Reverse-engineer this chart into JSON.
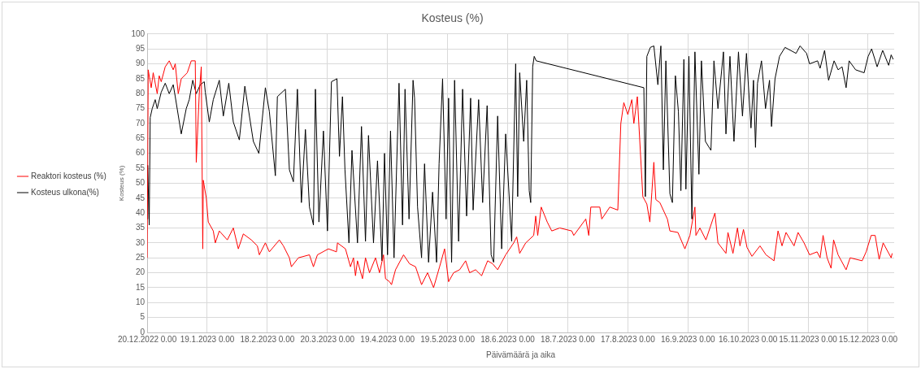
{
  "chart_data": {
    "type": "line",
    "title": "Kosteus (%)",
    "xlabel": "Päivämäärä ja aika",
    "ylabel": "Kosteus (%)",
    "xlim": [
      "2022-12-20",
      "2023-12-28"
    ],
    "xticks": [
      {
        "value": "2022-12-20",
        "label": "20.12.2022 0.00"
      },
      {
        "value": "2023-01-19",
        "label": "19.1.2023 0.00"
      },
      {
        "value": "2023-02-18",
        "label": "18.2.2023 0.00"
      },
      {
        "value": "2023-03-20",
        "label": "20.3.2023 0.00"
      },
      {
        "value": "2023-04-19",
        "label": "19.4.2023 0.00"
      },
      {
        "value": "2023-05-19",
        "label": "19.5.2023 0.00"
      },
      {
        "value": "2023-06-18",
        "label": "18.6.2023 0.00"
      },
      {
        "value": "2023-07-18",
        "label": "18.7.2023 0.00"
      },
      {
        "value": "2023-08-17",
        "label": "17.8.2023 0.00"
      },
      {
        "value": "2023-09-16",
        "label": "16.9.2023 0.00"
      },
      {
        "value": "2023-10-16",
        "label": "16.10.2023 0.00"
      },
      {
        "value": "2023-11-15",
        "label": "15.11.2023 0.00"
      },
      {
        "value": "2023-12-15",
        "label": "15.12.2023 0.00"
      }
    ],
    "ylim": [
      0,
      100
    ],
    "yticks": [
      0,
      5,
      10,
      15,
      20,
      25,
      30,
      35,
      40,
      45,
      50,
      55,
      60,
      65,
      70,
      75,
      80,
      85,
      90,
      95,
      100
    ],
    "grid": true,
    "legend": "left",
    "line_style": "solid",
    "series": [
      {
        "name": "Reaktori kosteus (%)",
        "color": "#ff0000",
        "x": [
          "2022-12-20",
          "2022-12-20T12:00",
          "2022-12-22",
          "2022-12-23",
          "2022-12-25",
          "2022-12-26",
          "2022-12-27",
          "2022-12-29",
          "2022-12-31",
          "2023-01-02",
          "2023-01-03",
          "2023-01-04T12:00",
          "2023-01-06",
          "2023-01-09",
          "2023-01-11",
          "2023-01-13",
          "2023-01-13T12:00",
          "2023-01-15",
          "2023-01-16",
          "2023-01-16T18:00",
          "2023-01-17",
          "2023-01-18T12:00",
          "2023-01-19T12:00",
          "2023-01-22",
          "2023-01-23",
          "2023-01-25",
          "2023-01-29",
          "2023-02-01",
          "2023-02-03T12:00",
          "2023-02-06",
          "2023-02-10",
          "2023-02-13",
          "2023-02-14",
          "2023-02-17",
          "2023-02-19",
          "2023-02-24",
          "2023-02-26",
          "2023-03-01",
          "2023-03-02",
          "2023-03-05T12:00",
          "2023-03-11",
          "2023-03-13",
          "2023-03-15",
          "2023-03-20T12:00",
          "2023-03-24T12:00",
          "2023-03-25",
          "2023-03-29",
          "2023-03-31T12:00",
          "2023-04-02",
          "2023-04-03",
          "2023-04-04",
          "2023-04-06T12:00",
          "2023-04-08",
          "2023-04-10",
          "2023-04-13",
          "2023-04-15",
          "2023-04-17",
          "2023-04-18",
          "2023-04-20",
          "2023-04-21",
          "2023-04-23",
          "2023-04-27",
          "2023-04-30",
          "2023-05-03",
          "2023-05-06",
          "2023-05-09",
          "2023-05-12",
          "2023-05-15",
          "2023-05-17T12:00",
          "2023-05-19T12:00",
          "2023-05-22",
          "2023-05-25",
          "2023-05-28",
          "2023-05-30",
          "2023-06-02",
          "2023-06-05",
          "2023-06-08",
          "2023-06-10T12:00",
          "2023-06-13",
          "2023-06-17",
          "2023-06-21",
          "2023-06-22T12:00",
          "2023-06-24",
          "2023-06-27",
          "2023-07-01",
          "2023-07-02",
          "2023-07-03",
          "2023-07-04T18:00",
          "2023-07-07T18:00",
          "2023-07-10",
          "2023-07-14",
          "2023-07-20",
          "2023-07-21",
          "2023-07-27",
          "2023-07-28T12:00",
          "2023-07-29T12:00",
          "2023-08-03",
          "2023-08-04",
          "2023-08-08",
          "2023-08-12",
          "2023-08-13T12:00",
          "2023-08-15",
          "2023-08-17",
          "2023-08-19",
          "2023-08-20",
          "2023-08-21T18:00",
          "2023-08-24T12:00",
          "2023-08-26T12:00",
          "2023-08-28",
          "2023-08-29",
          "2023-08-30",
          "2023-08-31",
          "2023-09-02",
          "2023-09-05T18:00",
          "2023-09-07",
          "2023-09-11",
          "2023-09-14T12:00",
          "2023-09-17",
          "2023-09-19T12:00",
          "2023-09-20",
          "2023-09-22",
          "2023-09-25",
          "2023-09-29T12:00",
          "2023-10-01",
          "2023-10-05",
          "2023-10-06",
          "2023-10-08T12:00",
          "2023-10-10T18:00",
          "2023-10-12",
          "2023-10-13T18:00",
          "2023-10-15T12:00",
          "2023-10-18",
          "2023-10-22",
          "2023-10-25",
          "2023-10-29",
          "2023-10-31",
          "2023-11-02",
          "2023-11-04",
          "2023-11-08",
          "2023-11-10",
          "2023-11-13",
          "2023-11-15T18:00",
          "2023-11-19T12:00",
          "2023-11-21",
          "2023-11-22T12:00",
          "2023-11-24T12:00",
          "2023-11-26T12:00",
          "2023-11-27T18:00",
          "2023-11-30",
          "2023-12-04",
          "2023-12-06",
          "2023-12-12",
          "2023-12-14",
          "2023-12-16T12:00",
          "2023-12-18T12:00",
          "2023-12-20T12:00",
          "2023-12-22T12:00",
          "2023-12-26T12:00",
          "2023-12-27"
        ],
        "values": [
          25,
          88,
          82,
          87,
          80,
          86,
          84,
          89,
          91,
          88,
          90,
          80,
          85,
          87,
          91,
          91,
          57,
          80,
          89,
          28,
          51,
          45,
          37,
          34,
          30,
          34,
          31,
          35,
          28,
          33,
          31,
          29,
          26,
          30,
          27,
          31,
          29,
          25,
          22,
          25,
          26,
          22,
          26,
          28,
          27,
          30,
          28,
          22,
          25,
          19,
          24,
          18,
          25,
          20,
          25,
          20,
          26,
          18,
          17,
          16,
          21,
          26,
          23,
          22,
          16,
          20,
          15,
          22,
          28,
          17,
          20,
          21,
          24,
          20,
          21,
          19,
          24,
          23,
          21,
          26,
          30,
          32,
          26.5,
          30,
          32.5,
          39,
          32.5,
          42,
          37,
          34,
          35,
          34,
          32.5,
          38,
          32.5,
          42,
          42,
          38,
          42,
          41,
          70,
          77,
          73,
          78,
          70,
          79,
          45.5,
          43,
          37,
          47,
          57,
          44.5,
          43.5,
          38,
          34,
          33.5,
          28,
          32.5,
          42,
          32.5,
          35,
          31,
          40,
          30,
          26.5,
          33.5,
          26.5,
          35,
          29,
          34.5,
          28.5,
          25.5,
          29,
          26,
          24,
          34,
          29,
          33.5,
          29,
          33.5,
          30,
          26,
          27,
          25,
          32.5,
          25,
          21.5,
          31,
          26,
          21,
          25,
          24,
          27,
          32.5,
          32.5,
          24.5,
          30,
          25,
          26.5
        ]
      },
      {
        "name": "Kosteus ulkona(%)",
        "color": "#000000",
        "x": [
          "2022-12-20",
          "2022-12-20T06:00",
          "2022-12-21",
          "2022-12-21T12:00",
          "2022-12-22T12:00",
          "2022-12-24",
          "2022-12-25",
          "2022-12-27",
          "2022-12-29",
          "2022-12-31",
          "2023-01-02",
          "2023-01-03",
          "2023-01-06",
          "2023-01-08T12:00",
          "2023-01-10",
          "2023-01-11T18:00",
          "2023-01-13T12:00",
          "2023-01-15T12:00",
          "2023-01-17T12:00",
          "2023-01-18",
          "2023-01-20",
          "2023-01-22",
          "2023-01-25",
          "2023-01-27",
          "2023-01-29T18:00",
          "2023-02-01",
          "2023-02-04",
          "2023-02-06T18:00",
          "2023-02-11",
          "2023-02-13T18:00",
          "2023-02-17",
          "2023-02-19",
          "2023-02-22",
          "2023-02-23",
          "2023-02-27",
          "2023-03-01",
          "2023-03-03",
          "2023-03-05",
          "2023-03-07",
          "2023-03-09",
          "2023-03-11",
          "2023-03-13",
          "2023-03-14",
          "2023-03-15T18:00",
          "2023-03-18",
          "2023-03-20",
          "2023-03-22",
          "2023-03-24T18:00",
          "2023-03-26",
          "2023-03-27T12:00",
          "2023-03-28T18:00",
          "2023-03-30T18:00",
          "2023-04-01T06:00",
          "2023-04-04",
          "2023-04-06",
          "2023-04-08",
          "2023-04-09T12:00",
          "2023-04-12",
          "2023-04-14",
          "2023-04-16T06:00",
          "2023-04-17T12:00",
          "2023-04-19",
          "2023-04-20T12:00",
          "2023-04-22T06:00",
          "2023-04-24T18:00",
          "2023-04-26T12:00",
          "2023-04-27T18:00",
          "2023-04-29T18:00",
          "2023-05-01T18:00",
          "2023-05-02T12:00",
          "2023-05-04",
          "2023-05-06",
          "2023-05-07T12:00",
          "2023-05-09T12:00",
          "2023-05-11T12:00",
          "2023-05-13T12:00",
          "2023-05-14T18:00",
          "2023-05-16T12:00",
          "2023-05-18T06:00",
          "2023-05-19T12:00",
          "2023-05-21",
          "2023-05-22T12:00",
          "2023-05-24T12:00",
          "2023-05-26T12:00",
          "2023-05-28T12:00",
          "2023-05-30T12:00",
          "2023-05-31T18:00",
          "2023-06-03T12:00",
          "2023-06-05T12:00",
          "2023-06-07T18:00",
          "2023-06-09T18:00",
          "2023-06-11",
          "2023-06-13",
          "2023-06-15",
          "2023-06-17",
          "2023-06-20",
          "2023-06-22",
          "2023-06-23",
          "2023-06-24",
          "2023-06-26",
          "2023-06-27T12:00",
          "2023-06-28T18:00",
          "2023-06-29T12:00",
          "2023-06-30T12:00",
          "2023-07-01T06:00",
          "2023-07-02T06:00",
          "2023-08-25",
          "2023-08-25T18:00",
          "2023-08-26T12:00",
          "2023-08-28T06:00",
          "2023-08-30",
          "2023-09-01",
          "2023-09-02T12:00",
          "2023-09-03T18:00",
          "2023-09-05",
          "2023-09-07",
          "2023-09-08T06:00",
          "2023-09-09T18:00",
          "2023-09-11T06:00",
          "2023-09-12T12:00",
          "2023-09-14",
          "2023-09-15",
          "2023-09-16T12:00",
          "2023-09-18",
          "2023-09-19T12:00",
          "2023-09-21T12:00",
          "2023-09-22T18:00",
          "2023-09-24T18:00",
          "2023-09-27T12:00",
          "2023-09-29",
          "2023-10-01",
          "2023-10-03T18:00",
          "2023-10-05",
          "2023-10-07",
          "2023-10-09",
          "2023-10-11T06:00",
          "2023-10-13T06:00",
          "2023-10-15T06:00",
          "2023-10-17T12:00",
          "2023-10-18T18:00",
          "2023-10-19T18:00",
          "2023-10-20T18:00",
          "2023-10-22T18:00",
          "2023-10-24T18:00",
          "2023-10-26T18:00",
          "2023-10-27T18:00",
          "2023-10-29T12:00",
          "2023-10-31T18:00",
          "2023-11-03T12:00",
          "2023-11-09",
          "2023-11-11",
          "2023-11-14T06:00",
          "2023-11-15T18:00",
          "2023-11-19T18:00",
          "2023-11-21",
          "2023-11-23T06:00",
          "2023-11-25T06:00",
          "2023-11-28",
          "2023-11-30",
          "2023-12-02",
          "2023-12-04",
          "2023-12-05T12:00",
          "2023-12-08T18:00",
          "2023-12-13",
          "2023-12-15",
          "2023-12-16T18:00",
          "2023-12-19T12:00",
          "2023-12-22T06:00",
          "2023-12-25T06:00",
          "2023-12-26T12:00",
          "2023-12-27T12:00"
        ],
        "values": [
          38,
          56,
          36,
          72,
          75,
          78,
          75,
          80.5,
          83.5,
          80,
          83,
          79,
          66.5,
          75,
          78,
          84.5,
          80,
          83,
          84,
          80.5,
          70.5,
          78,
          84.5,
          72.5,
          83.5,
          70.5,
          64.5,
          82.5,
          64,
          60,
          82,
          74,
          52.5,
          79,
          81.5,
          54.5,
          50.5,
          81.5,
          43.5,
          68,
          42,
          36,
          81.5,
          37,
          67.5,
          34,
          84,
          85,
          59,
          79,
          54.5,
          30,
          61,
          30,
          69,
          30.5,
          66,
          30,
          57.5,
          24,
          60,
          26,
          67.5,
          25,
          83.5,
          36,
          81.5,
          38,
          84.5,
          78.5,
          42,
          25,
          56.5,
          23.5,
          47,
          23.5,
          56.5,
          85,
          38,
          78.5,
          23.5,
          84.5,
          30.5,
          81.5,
          39,
          78.5,
          41,
          78,
          43.5,
          76,
          26,
          23.5,
          72.5,
          28,
          66.5,
          30.5,
          90,
          45.5,
          87,
          64,
          84.5,
          47.5,
          43.5,
          89,
          92.5,
          91,
          82,
          45.5,
          92.5,
          95.5,
          96,
          83,
          96,
          54.5,
          91,
          46.5,
          43.5,
          86,
          74,
          47.5,
          91.5,
          48,
          92.5,
          38,
          94,
          53,
          91,
          64,
          61,
          91,
          75,
          94,
          66.5,
          92.5,
          64,
          94,
          72.5,
          93.5,
          68.5,
          84.5,
          62,
          83.5,
          91,
          75,
          84.5,
          69,
          85,
          92.5,
          95.5,
          93.5,
          96,
          93.5,
          90,
          91,
          88.5,
          94.5,
          84.5,
          91,
          88,
          89,
          82,
          91,
          88,
          87,
          92.5,
          95,
          89,
          94.5,
          89.5,
          93,
          91.5
        ]
      }
    ]
  }
}
